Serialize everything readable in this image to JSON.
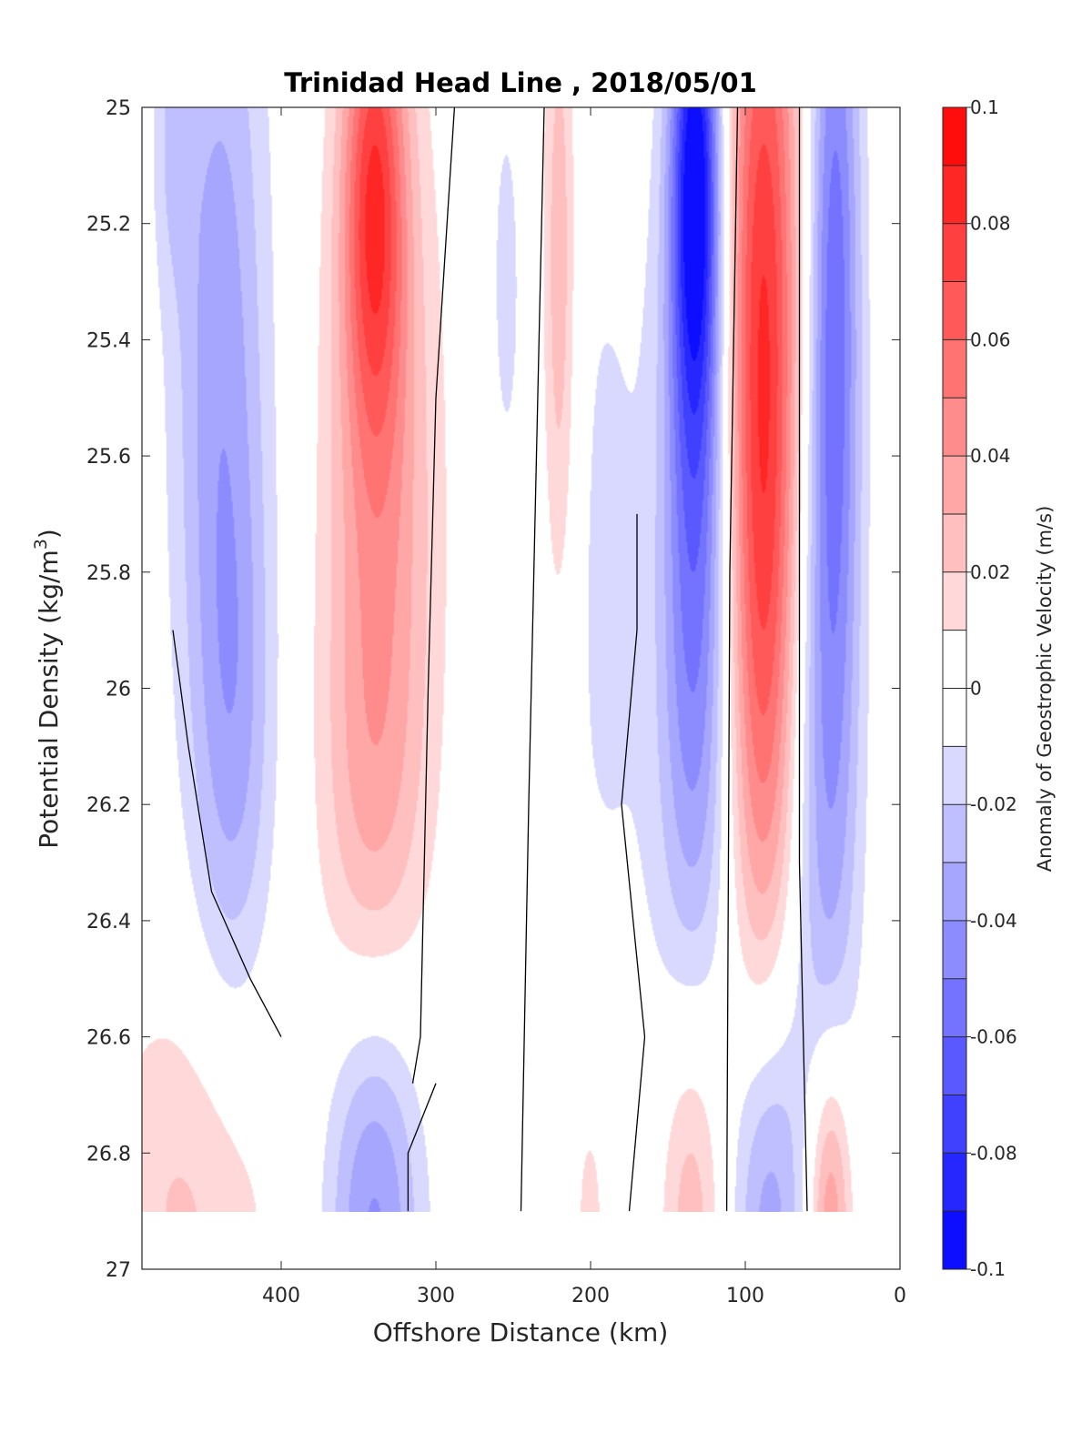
{
  "chart_data": {
    "type": "contour",
    "title": "Trinidad Head Line , 2018/05/01",
    "xlabel": "Offshore Distance (km)",
    "ylabel": "Potential Density (kg/m³)",
    "ylabel_parts": {
      "text": "Potential Density (kg/m",
      "sup": "3",
      "close": ")"
    },
    "xlim": [
      490,
      0
    ],
    "ylim": [
      25,
      27
    ],
    "x_reversed": true,
    "y_reversed": true,
    "x_ticks": [
      400,
      300,
      200,
      100,
      0
    ],
    "x_tick_labels": [
      "400",
      "300",
      "200",
      "100",
      "0"
    ],
    "y_ticks": [
      25,
      25.2,
      25.4,
      25.6,
      25.8,
      26,
      26.2,
      26.4,
      26.6,
      26.8,
      27
    ],
    "y_tick_labels": [
      "25",
      "25.2",
      "25.4",
      "25.6",
      "25.8",
      "26",
      "26.2",
      "26.4",
      "26.6",
      "26.8",
      "27"
    ],
    "data_ymax": 26.9,
    "colorbar": {
      "label": "Anomaly of Geostrophic Velocity (m/s)",
      "min": -0.1,
      "max": 0.1,
      "levels": 20,
      "ticks": [
        0.1,
        0.08,
        0.06,
        0.04,
        0.02,
        0,
        -0.02,
        -0.04,
        -0.06,
        -0.08,
        -0.1
      ],
      "tick_labels": [
        "0.1",
        "0.08",
        "0.06",
        "0.04",
        "0.02",
        "0",
        "-0.02",
        "-0.04",
        "-0.06",
        "-0.08",
        "-0.1"
      ],
      "low_color": "#0000ff",
      "mid_color": "#ffffff",
      "high_color": "#ff0000"
    },
    "zero_contour_color": "#000000",
    "features": [
      {
        "x": 470,
        "y": 25.05,
        "sx": 9,
        "sy": 0.18,
        "v": -0.015
      },
      {
        "x": 440,
        "y": 25.4,
        "sx": 22,
        "sy": 0.6,
        "v": -0.035
      },
      {
        "x": 430,
        "y": 26.1,
        "sx": 18,
        "sy": 0.35,
        "v": -0.022
      },
      {
        "x": 460,
        "y": 26.9,
        "sx": 40,
        "sy": 0.28,
        "v": 0.022
      },
      {
        "x": 340,
        "y": 25.15,
        "sx": 14,
        "sy": 0.3,
        "v": 0.065
      },
      {
        "x": 335,
        "y": 25.7,
        "sx": 26,
        "sy": 0.55,
        "v": 0.035
      },
      {
        "x": 345,
        "y": 26.2,
        "sx": 22,
        "sy": 0.3,
        "v": 0.015
      },
      {
        "x": 340,
        "y": 26.9,
        "sx": 22,
        "sy": 0.28,
        "v": -0.045
      },
      {
        "x": 255,
        "y": 25.3,
        "sx": 10,
        "sy": 0.35,
        "v": -0.012
      },
      {
        "x": 220,
        "y": 25.3,
        "sx": 8,
        "sy": 0.45,
        "v": 0.03
      },
      {
        "x": 190,
        "y": 25.8,
        "sx": 26,
        "sy": 0.65,
        "v": -0.012
      },
      {
        "x": 200,
        "y": 26.9,
        "sx": 10,
        "sy": 0.22,
        "v": 0.015
      },
      {
        "x": 132,
        "y": 25.1,
        "sx": 11,
        "sy": 0.3,
        "v": -0.085
      },
      {
        "x": 132,
        "y": 25.65,
        "sx": 15,
        "sy": 0.45,
        "v": -0.05
      },
      {
        "x": 135,
        "y": 26.2,
        "sx": 18,
        "sy": 0.35,
        "v": -0.015
      },
      {
        "x": 135,
        "y": 26.9,
        "sx": 14,
        "sy": 0.25,
        "v": 0.028
      },
      {
        "x": 88,
        "y": 25.25,
        "sx": 17,
        "sy": 0.55,
        "v": 0.07
      },
      {
        "x": 88,
        "y": 26.0,
        "sx": 15,
        "sy": 0.45,
        "v": 0.038
      },
      {
        "x": 85,
        "y": 26.9,
        "sx": 16,
        "sy": 0.28,
        "v": -0.038
      },
      {
        "x": 42,
        "y": 25.3,
        "sx": 12,
        "sy": 0.55,
        "v": -0.055
      },
      {
        "x": 48,
        "y": 26.2,
        "sx": 16,
        "sy": 0.45,
        "v": -0.028
      },
      {
        "x": 45,
        "y": 26.9,
        "sx": 10,
        "sy": 0.2,
        "v": 0.045
      }
    ],
    "zero_contours": [
      [
        [
          288,
          25.0
        ],
        [
          300,
          25.5
        ],
        [
          305,
          26.0
        ],
        [
          310,
          26.6
        ],
        [
          315,
          26.68
        ]
      ],
      [
        [
          300,
          26.68
        ],
        [
          318,
          26.8
        ],
        [
          318,
          26.9
        ]
      ],
      [
        [
          170,
          25.7
        ],
        [
          170,
          25.9
        ],
        [
          180,
          26.2
        ],
        [
          165,
          26.6
        ],
        [
          175,
          26.9
        ]
      ],
      [
        [
          470,
          25.9
        ],
        [
          460,
          26.1
        ],
        [
          445,
          26.35
        ],
        [
          420,
          26.5
        ],
        [
          400,
          26.6
        ]
      ],
      [
        [
          230,
          25.0
        ],
        [
          235,
          25.6
        ],
        [
          240,
          26.2
        ],
        [
          245,
          26.9
        ]
      ],
      [
        [
          105,
          25.0
        ],
        [
          110,
          25.8
        ],
        [
          112,
          26.9
        ]
      ],
      [
        [
          65,
          25.0
        ],
        [
          65,
          26.3
        ],
        [
          60,
          26.9
        ]
      ]
    ]
  }
}
